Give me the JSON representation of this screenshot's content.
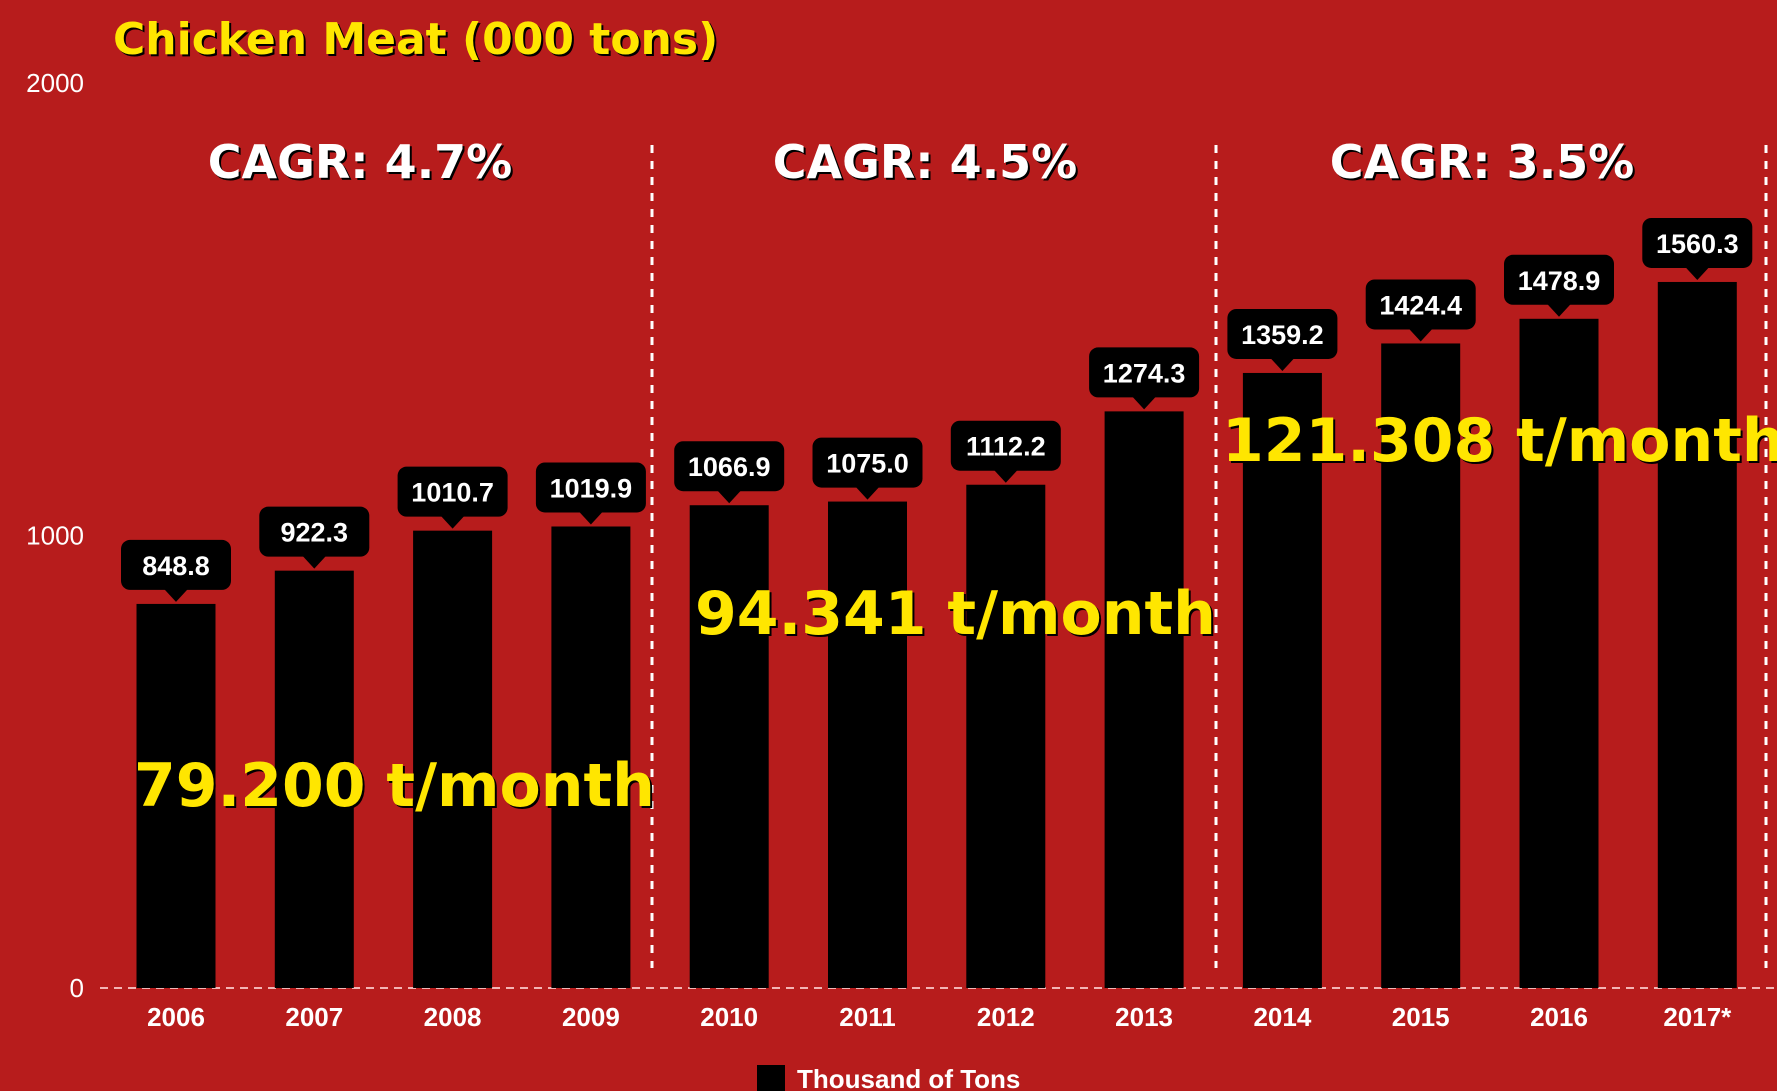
{
  "chart_data": {
    "type": "bar",
    "title": "Chicken Meat (000 tons)",
    "categories": [
      "2006",
      "2007",
      "2008",
      "2009",
      "2010",
      "2011",
      "2012",
      "2013",
      "2014",
      "2015",
      "2016",
      "2017*"
    ],
    "series": [
      {
        "name": "Thousand of Tons",
        "color": "#000000",
        "values": [
          848.8,
          922.3,
          1010.7,
          1019.9,
          1066.9,
          1075.0,
          1112.2,
          1274.3,
          1359.2,
          1424.4,
          1478.9,
          1560.3
        ],
        "value_labels": [
          "848.8",
          "922.3",
          "1010.7",
          "1019.9",
          "1066.9",
          "1075.0",
          "1112.2",
          "1274.3",
          "1359.2",
          "1424.4",
          "1478.9",
          "1560.3"
        ]
      }
    ],
    "ylim": [
      0,
      2000
    ],
    "yticks": [
      0,
      1000,
      2000
    ],
    "annotations": [
      "CAGR: 4.7%",
      "CAGR: 4.5%",
      "CAGR: 3.5%",
      "79.200 t/month",
      "94.341 t/month",
      "121.308 t/month"
    ]
  }
}
